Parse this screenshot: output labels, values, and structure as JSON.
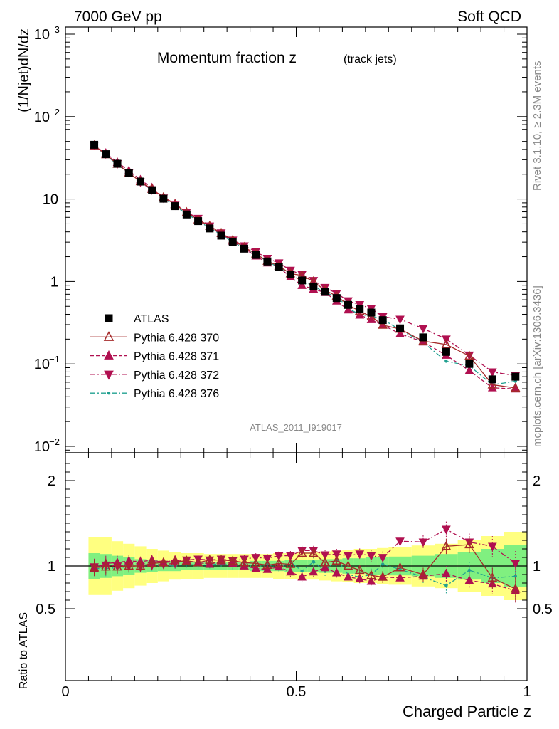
{
  "header": {
    "left": "7000 GeV pp",
    "right": "Soft QCD"
  },
  "side_labels": {
    "rivet": "Rivet 3.1.10, ≥ 2.3M events",
    "mcplots": "mcplots.cern.ch [arXiv:1306.3436]"
  },
  "chart_data": {
    "type": "line",
    "title": "Momentum fraction z(track jets)",
    "title_main": "Momentum fraction z",
    "title_sub": "(track jets)",
    "xlabel": "Charged Particle z",
    "ylabel": "(1/Njet)dN/dz",
    "ratio_ylabel": "Ratio to ATLAS",
    "analysis_label": "ATLAS_2011_I919017",
    "xlim": [
      0,
      1
    ],
    "ylim": [
      0.008,
      1300
    ],
    "y_scale": "log",
    "ratio_ylim": [
      0.36,
      2.3
    ],
    "x_ticks": [
      "0",
      "0.5",
      "1"
    ],
    "y_ticks": [
      "10−2",
      "10−1",
      "1",
      "10",
      "102",
      "103"
    ],
    "ratio_ticks": [
      "0.5",
      "1",
      "2"
    ],
    "legend_position": "middle-left",
    "x": [
      0.0625,
      0.0875,
      0.1125,
      0.1375,
      0.1625,
      0.1875,
      0.2125,
      0.2375,
      0.2625,
      0.2875,
      0.3125,
      0.3375,
      0.3625,
      0.3875,
      0.4125,
      0.4375,
      0.4625,
      0.4875,
      0.5125,
      0.5375,
      0.5625,
      0.5875,
      0.6125,
      0.6375,
      0.6625,
      0.6875,
      0.725,
      0.775,
      0.825,
      0.875,
      0.925,
      0.975
    ],
    "ratio_band_outer": [
      0.34,
      0.34,
      0.29,
      0.26,
      0.23,
      0.2,
      0.18,
      0.16,
      0.15,
      0.15,
      0.14,
      0.14,
      0.14,
      0.14,
      0.14,
      0.14,
      0.15,
      0.15,
      0.16,
      0.16,
      0.17,
      0.18,
      0.19,
      0.2,
      0.2,
      0.21,
      0.22,
      0.24,
      0.26,
      0.3,
      0.35,
      0.4
    ],
    "ratio_band_inner": [
      0.15,
      0.14,
      0.12,
      0.1,
      0.08,
      0.07,
      0.06,
      0.06,
      0.05,
      0.05,
      0.05,
      0.05,
      0.05,
      0.05,
      0.06,
      0.06,
      0.06,
      0.07,
      0.07,
      0.07,
      0.08,
      0.08,
      0.09,
      0.09,
      0.1,
      0.1,
      0.11,
      0.12,
      0.14,
      0.16,
      0.2,
      0.25
    ],
    "series": [
      {
        "name": "ATLAS",
        "color": "#000000",
        "marker": "square",
        "line": "none",
        "values": [
          45.5,
          35.0,
          26.8,
          20.8,
          16.3,
          12.8,
          10.1,
          8.2,
          6.5,
          5.4,
          4.4,
          3.6,
          3.0,
          2.5,
          2.1,
          1.75,
          1.5,
          1.22,
          1.03,
          0.87,
          0.75,
          0.63,
          0.52,
          0.46,
          0.42,
          0.34,
          0.27,
          0.21,
          0.14,
          0.1,
          0.065,
          0.07
        ]
      },
      {
        "name": "Pythia 6.428 370",
        "color": "#a52a2a",
        "marker": "open-triangle-up",
        "line": "solid",
        "ratio": [
          0.98,
          0.99,
          0.99,
          1.0,
          1.0,
          1.03,
          1.04,
          1.05,
          1.06,
          1.04,
          1.07,
          1.07,
          1.06,
          1.04,
          1.03,
          1.01,
          1.03,
          1.02,
          1.15,
          1.15,
          1.04,
          1.06,
          1.0,
          0.95,
          0.89,
          0.87,
          0.98,
          0.9,
          1.23,
          1.25,
          0.86,
          0.73
        ]
      },
      {
        "name": "Pythia 6.428 371",
        "color": "#b01050",
        "marker": "triangle-up",
        "line": "dashed",
        "ratio": [
          0.97,
          1.03,
          1.04,
          1.06,
          1.05,
          1.07,
          1.04,
          1.07,
          1.06,
          1.04,
          1.02,
          1.06,
          1.03,
          1.0,
          0.97,
          0.96,
          0.99,
          0.93,
          0.87,
          0.93,
          0.98,
          0.92,
          0.87,
          0.85,
          0.82,
          0.87,
          0.86,
          0.88,
          0.91,
          0.83,
          0.79,
          0.71
        ]
      },
      {
        "name": "Pythia 6.428 372",
        "color": "#b01050",
        "marker": "triangle-down",
        "line": "dash-dot",
        "ratio": [
          0.99,
          1.01,
          1.0,
          1.0,
          0.99,
          1.01,
          1.02,
          1.03,
          1.07,
          1.08,
          1.07,
          1.08,
          1.06,
          1.08,
          1.1,
          1.09,
          1.12,
          1.12,
          1.18,
          1.18,
          1.13,
          1.14,
          1.12,
          1.14,
          1.12,
          1.1,
          1.29,
          1.28,
          1.43,
          1.28,
          1.23,
          1.03
        ]
      },
      {
        "name": "Pythia 6.428 376",
        "color": "#20a090",
        "marker": "dot",
        "line": "dash-dot",
        "ratio": [
          0.97,
          0.97,
          0.98,
          0.99,
          0.99,
          1.0,
          1.01,
          1.0,
          1.02,
          1.01,
          1.01,
          1.03,
          1.0,
          1.02,
          0.98,
          1.02,
          0.97,
          1.05,
          0.94,
          1.05,
          0.94,
          1.08,
          0.9,
          0.87,
          0.9,
          1.02,
          0.96,
          0.87,
          0.77,
          0.95,
          0.86,
          0.88
        ]
      }
    ]
  }
}
